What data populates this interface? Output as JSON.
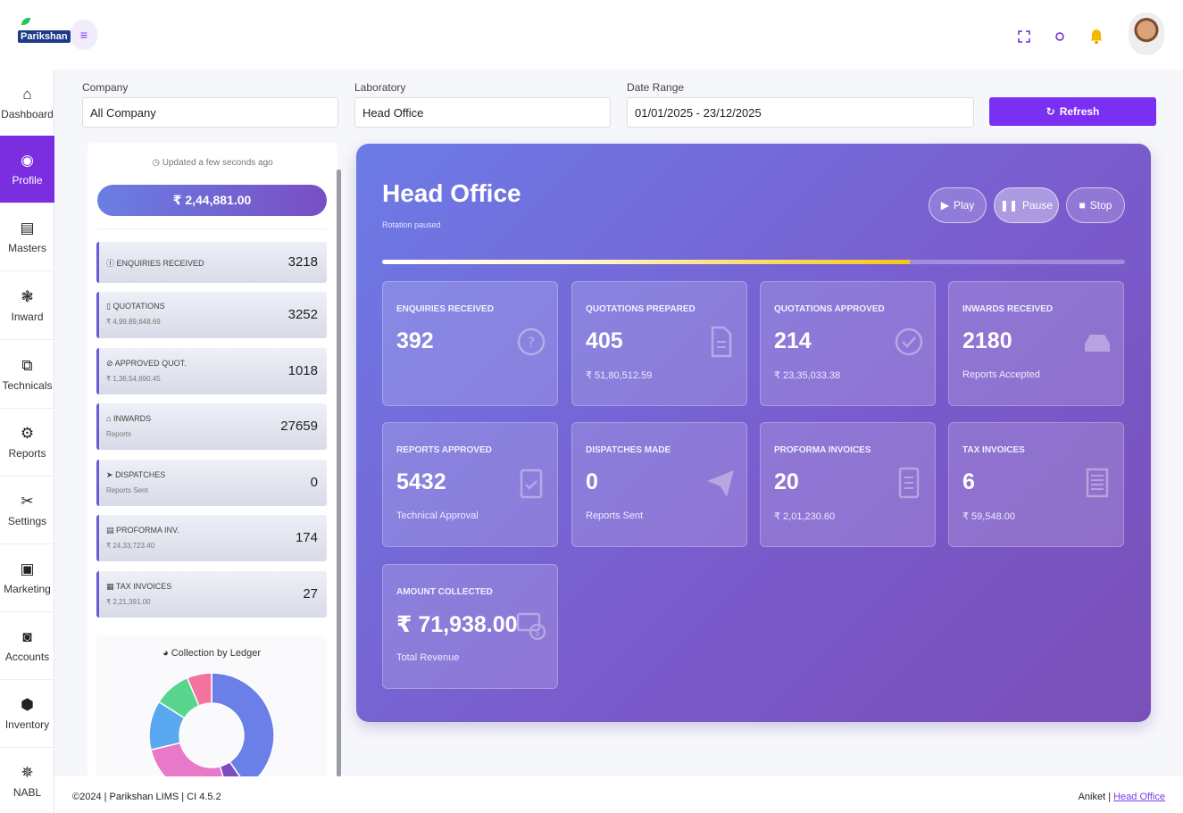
{
  "app": {
    "logo_text": "arikshan",
    "logo_initial": "P"
  },
  "header": {
    "menu_icon": "hamburger-icon",
    "icons": [
      "fullscreen-icon",
      "theme-icon",
      "bell-icon"
    ]
  },
  "sidebar": {
    "items": [
      {
        "label": "Dashboard",
        "icon": "home-icon"
      },
      {
        "label": "Profile",
        "icon": "profile-icon"
      },
      {
        "label": "Masters",
        "icon": "masters-icon"
      },
      {
        "label": "Inward",
        "icon": "inward-icon"
      },
      {
        "label": "Technicals",
        "icon": "technicals-icon"
      },
      {
        "label": "Reports",
        "icon": "reports-icon"
      },
      {
        "label": "Settings",
        "icon": "settings-icon"
      },
      {
        "label": "Marketing",
        "icon": "marketing-icon"
      },
      {
        "label": "Accounts",
        "icon": "accounts-icon"
      },
      {
        "label": "Inventory",
        "icon": "inventory-icon"
      },
      {
        "label": "NABL",
        "icon": "nabl-icon"
      }
    ],
    "active_index": 1
  },
  "filters": {
    "company_label": "Company",
    "company_value": "All Company",
    "laboratory_label": "Laboratory",
    "laboratory_value": "Head Office",
    "date_label": "Date Range",
    "date_value": "01/01/2025 - 23/12/2025",
    "refresh_label": "Refresh"
  },
  "summary": {
    "updated_text": "Updated a few seconds ago",
    "total": "₹ 2,44,881.00",
    "cards": [
      {
        "label": "ENQUIRIES RECEIVED",
        "sub": "",
        "value": "3218",
        "icon": "question-icon"
      },
      {
        "label": "QUOTATIONS",
        "sub": "₹ 4,99,89,648.69",
        "value": "3252",
        "icon": "document-icon"
      },
      {
        "label": "APPROVED QUOT.",
        "sub": "₹ 1,36,54,690.45",
        "value": "1018",
        "icon": "check-circle-icon"
      },
      {
        "label": "INWARDS",
        "sub": "Reports",
        "value": "27659",
        "icon": "inbox-icon"
      },
      {
        "label": "DISPATCHES",
        "sub": "Reports Sent",
        "value": "0",
        "icon": "send-icon"
      },
      {
        "label": "PROFORMA INV.",
        "sub": "₹ 24,33,723.40",
        "value": "174",
        "icon": "invoice-icon"
      },
      {
        "label": "TAX INVOICES",
        "sub": "₹ 2,21,391.00",
        "value": "27",
        "icon": "receipt-icon"
      }
    ],
    "chart_title": "Collection by Ledger",
    "colors": {
      "blue": "#6b7fe8",
      "lightblue": "#5aa8f0",
      "pink": "#e879c9",
      "green": "#58d68d",
      "rose": "#f472a0",
      "purple": "#7c4dbf"
    }
  },
  "chart_data": {
    "type": "pie",
    "title": "Collection by Ledger",
    "values": [
      38,
      5,
      24,
      12,
      9,
      6
    ],
    "categories": [
      "",
      "",
      "",
      "",
      "",
      ""
    ]
  },
  "main": {
    "title": "Head Office",
    "subtitle": "Rotation paused",
    "controls": {
      "play": "Play",
      "pause": "Pause",
      "stop": "Stop"
    },
    "rotation_progress": 0.71,
    "metrics": [
      {
        "label": "ENQUIRIES RECEIVED",
        "value": "392",
        "sub": "",
        "icon": "question-icon"
      },
      {
        "label": "QUOTATIONS PREPARED",
        "value": "405",
        "sub": "₹ 51,80,512.59",
        "icon": "document-icon"
      },
      {
        "label": "QUOTATIONS APPROVED",
        "value": "214",
        "sub": "₹ 23,35,033.38",
        "icon": "check-circle-icon"
      },
      {
        "label": "INWARDS RECEIVED",
        "value": "2180",
        "sub": "Reports Accepted",
        "icon": "inbox-icon"
      },
      {
        "label": "REPORTS APPROVED",
        "value": "5432",
        "sub": "Technical Approval",
        "icon": "clipboard-check-icon"
      },
      {
        "label": "DISPATCHES MADE",
        "value": "0",
        "sub": "Reports Sent",
        "icon": "paper-plane-icon"
      },
      {
        "label": "PROFORMA INVOICES",
        "value": "20",
        "sub": "₹ 2,01,230.60",
        "icon": "invoice-icon"
      },
      {
        "label": "TAX INVOICES",
        "value": "6",
        "sub": "₹ 59,548.00",
        "icon": "receipt-icon"
      },
      {
        "label": "AMOUNT COLLECTED",
        "value": "₹ 71,938.00",
        "sub": "Total Revenue",
        "icon": "money-icon"
      }
    ]
  },
  "footer": {
    "copyright": "©2024 | Parikshan LIMS | CI 4.5.2",
    "user": "Aniket | ",
    "lab_link": "Head Office"
  }
}
